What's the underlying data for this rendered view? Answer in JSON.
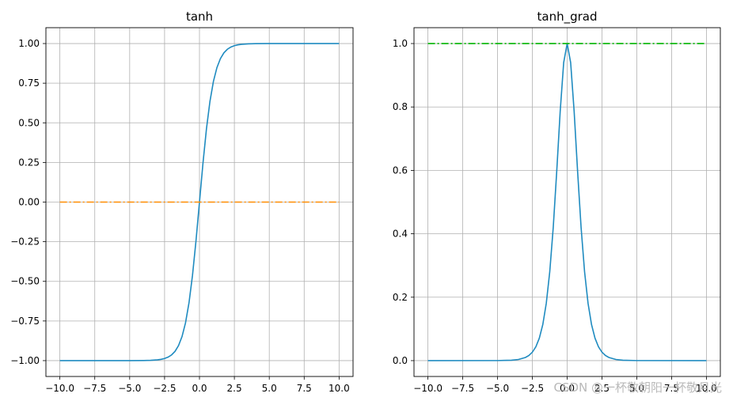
{
  "watermark": "CSDN @一杯敬朝阳一杯敬月光",
  "chart_data": [
    {
      "type": "line",
      "title": "tanh",
      "xlim": [
        -11,
        11
      ],
      "ylim": [
        -1.1,
        1.1
      ],
      "xticks": [
        -10,
        -7.5,
        -5,
        -2.5,
        0,
        2.5,
        5,
        7.5,
        10
      ],
      "xtick_labels": [
        "−10.0",
        "−7.5",
        "−5.0",
        "−2.5",
        "0.0",
        "2.5",
        "5.0",
        "7.5",
        "10.0"
      ],
      "yticks": [
        -1,
        -0.75,
        -0.5,
        -0.25,
        0,
        0.25,
        0.5,
        0.75,
        1
      ],
      "ytick_labels": [
        "−1.00",
        "−0.75",
        "−0.50",
        "−0.25",
        "0.00",
        "0.25",
        "0.50",
        "0.75",
        "1.00"
      ],
      "grid": true,
      "series": [
        {
          "color": "#1f8bc0",
          "style": "solid",
          "x": [
            -10,
            -5,
            -4,
            -3.5,
            -3,
            -2.75,
            -2.5,
            -2.25,
            -2,
            -1.75,
            -1.5,
            -1.25,
            -1,
            -0.75,
            -0.5,
            -0.25,
            0,
            0.25,
            0.5,
            0.75,
            1,
            1.25,
            1.5,
            1.75,
            2,
            2.25,
            2.5,
            2.75,
            3,
            3.5,
            4,
            5,
            10
          ],
          "y": [
            -1.0,
            -0.9999,
            -0.9993,
            -0.9982,
            -0.9951,
            -0.9918,
            -0.9866,
            -0.978,
            -0.964,
            -0.9414,
            -0.9051,
            -0.8483,
            -0.7616,
            -0.6351,
            -0.4621,
            -0.2449,
            0,
            0.2449,
            0.4621,
            0.6351,
            0.7616,
            0.8483,
            0.9051,
            0.9414,
            0.964,
            0.978,
            0.9866,
            0.9918,
            0.9951,
            0.9982,
            0.9993,
            0.9999,
            1.0
          ]
        },
        {
          "color": "#ff8c00",
          "style": "dashdot",
          "x": [
            -10,
            10
          ],
          "y": [
            0,
            0
          ]
        }
      ]
    },
    {
      "type": "line",
      "title": "tanh_grad",
      "xlim": [
        -11,
        11
      ],
      "ylim": [
        -0.05,
        1.05
      ],
      "xticks": [
        -10,
        -7.5,
        -5,
        -2.5,
        0,
        2.5,
        5,
        7.5,
        10
      ],
      "xtick_labels": [
        "−10.0",
        "−7.5",
        "−5.0",
        "−2.5",
        "0.0",
        "2.5",
        "5.0",
        "7.5",
        "10.0"
      ],
      "yticks": [
        0,
        0.2,
        0.4,
        0.6,
        0.8,
        1.0
      ],
      "ytick_labels": [
        "0.0",
        "0.2",
        "0.4",
        "0.6",
        "0.8",
        "1.0"
      ],
      "grid": true,
      "series": [
        {
          "color": "#1f8bc0",
          "style": "solid",
          "x": [
            -10,
            -5,
            -4,
            -3.5,
            -3,
            -2.75,
            -2.5,
            -2.25,
            -2,
            -1.75,
            -1.5,
            -1.25,
            -1,
            -0.75,
            -0.5,
            -0.25,
            0,
            0.25,
            0.5,
            0.75,
            1,
            1.25,
            1.5,
            1.75,
            2,
            2.25,
            2.5,
            2.75,
            3,
            3.5,
            4,
            5,
            10
          ],
          "y": [
            0,
            0.0002,
            0.0013,
            0.0036,
            0.0099,
            0.0163,
            0.0266,
            0.0435,
            0.0707,
            0.1138,
            0.1807,
            0.2804,
            0.42,
            0.5966,
            0.7864,
            0.94,
            1.0,
            0.94,
            0.7864,
            0.5966,
            0.42,
            0.2804,
            0.1807,
            0.1138,
            0.0707,
            0.0435,
            0.0266,
            0.0163,
            0.0099,
            0.0036,
            0.0013,
            0.0002,
            0
          ]
        },
        {
          "color": "#00b400",
          "style": "dashdot",
          "x": [
            -10,
            10
          ],
          "y": [
            1,
            1
          ]
        }
      ]
    }
  ]
}
